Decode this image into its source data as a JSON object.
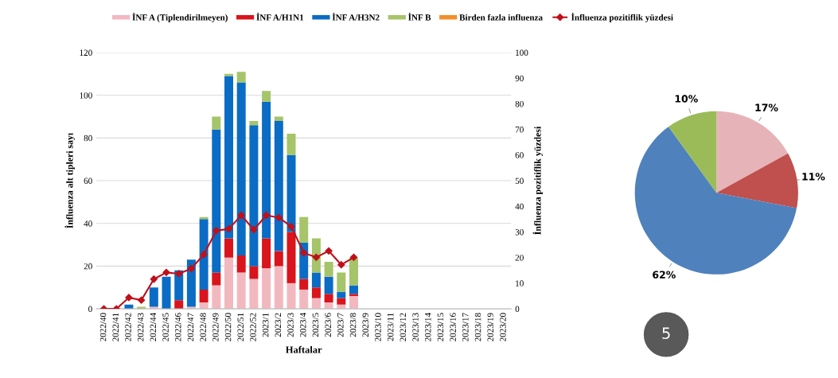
{
  "chart_data": [
    {
      "type": "bar",
      "stacked": true,
      "xlabel": "Haftalar",
      "ylabel": "İnfluenza alt tipleri sayı",
      "y2label": "İnfluenza pozitiflik yüzdesi",
      "categories": [
        "2022/40",
        "2022/41",
        "2022/42",
        "2022/43",
        "2022/44",
        "2022/45",
        "2022/46",
        "2022/47",
        "2022/48",
        "2022/49",
        "2022/50",
        "2022/51",
        "2022/52",
        "2023/1",
        "2023/2",
        "2023/3",
        "2023/4",
        "2023/5",
        "2023/6",
        "2023/7",
        "2023/8",
        "2023/9",
        "2023/10",
        "2023/11",
        "2023/12",
        "2023/13",
        "2023/14",
        "2023/15",
        "2023/16",
        "2023/17",
        "2023/18",
        "2023/19",
        "2023/20"
      ],
      "ylim": [
        0,
        120
      ],
      "yticks": [
        0,
        20,
        40,
        60,
        80,
        100,
        120
      ],
      "y2lim": [
        0,
        100
      ],
      "y2ticks": [
        0,
        10,
        20,
        30,
        40,
        50,
        60,
        70,
        80,
        90,
        100
      ],
      "grid": "y",
      "legend": "top",
      "series": [
        {
          "name": "İNF A (Tiplendirilmeyen)",
          "color": "#f2b8c0",
          "values": [
            0,
            0,
            0,
            0,
            1,
            0,
            0,
            1,
            3,
            11,
            24,
            17,
            14,
            19,
            20,
            12,
            9,
            5,
            3,
            2,
            6,
            null,
            null,
            null,
            null,
            null,
            null,
            null,
            null,
            null,
            null,
            null,
            null
          ]
        },
        {
          "name": "İNF A/H1N1",
          "color": "#d9141c",
          "values": [
            0,
            0,
            0,
            0,
            0,
            0,
            4,
            0,
            6,
            6,
            9,
            8,
            6,
            14,
            7,
            24,
            5,
            5,
            4,
            3,
            1,
            null,
            null,
            null,
            null,
            null,
            null,
            null,
            null,
            null,
            null,
            null,
            null
          ]
        },
        {
          "name": "İNF A/H3N2",
          "color": "#0a6cc4",
          "values": [
            0,
            0,
            2,
            0,
            9,
            15,
            14,
            22,
            33,
            67,
            76,
            81,
            66,
            64,
            61,
            36,
            17,
            7,
            8,
            3,
            4,
            null,
            null,
            null,
            null,
            null,
            null,
            null,
            null,
            null,
            null,
            null,
            null
          ]
        },
        {
          "name": "İNF B",
          "color": "#a6c46a",
          "values": [
            0,
            0,
            0,
            1,
            0,
            0,
            0,
            0,
            1,
            6,
            1,
            5,
            2,
            5,
            2,
            10,
            12,
            16,
            7,
            9,
            13,
            null,
            null,
            null,
            null,
            null,
            null,
            null,
            null,
            null,
            null,
            null,
            null
          ]
        },
        {
          "name": "Birden fazla influenza",
          "color": "#f28e2b",
          "values": [
            0,
            0,
            0,
            0,
            0,
            0,
            0,
            0,
            0,
            0,
            0,
            0,
            0,
            0,
            0,
            0,
            0,
            0,
            0,
            0,
            0,
            null,
            null,
            null,
            null,
            null,
            null,
            null,
            null,
            null,
            null,
            null,
            null
          ]
        },
        {
          "name": "İnfluenza pozitiflik yüzdesi",
          "type": "line",
          "axis": "y2",
          "marker": "diamond",
          "color": "#c0101a",
          "values": [
            0,
            0,
            4.4,
            3.4,
            11.6,
            14.2,
            13.7,
            15.7,
            21.2,
            30.5,
            31.2,
            36.5,
            30.9,
            36.5,
            35.6,
            32.1,
            21.8,
            20.1,
            22.6,
            17.2,
            20.1,
            null,
            null,
            null,
            null,
            null,
            null,
            null,
            null,
            null,
            null,
            null,
            null
          ]
        }
      ]
    },
    {
      "type": "pie",
      "categories": [
        null,
        null,
        null,
        null
      ],
      "values": [
        17,
        11,
        62,
        10
      ],
      "value_labels": [
        "17%",
        "11%",
        "62%",
        "10%"
      ],
      "colors": [
        "#e6b4b8",
        "#c0504d",
        "#4f81bd",
        "#9bbb59"
      ],
      "annotations": [
        "5"
      ]
    }
  ]
}
